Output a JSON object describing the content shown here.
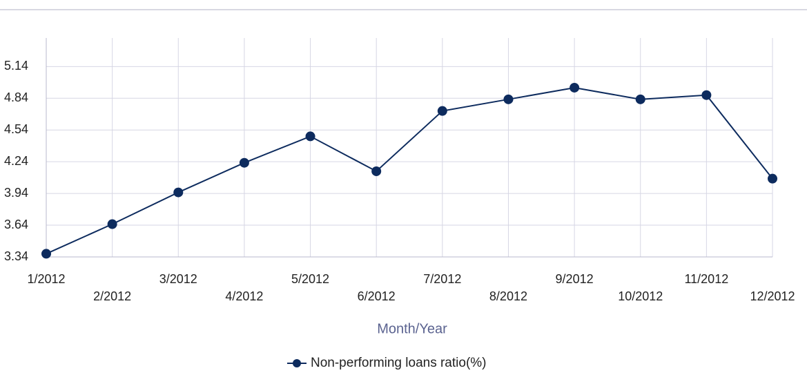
{
  "chart_data": {
    "type": "line",
    "x_label": "Month/Year",
    "categories": [
      "1/2012",
      "2/2012",
      "3/2012",
      "4/2012",
      "5/2012",
      "6/2012",
      "7/2012",
      "8/2012",
      "9/2012",
      "10/2012",
      "11/2012",
      "12/2012"
    ],
    "series": [
      {
        "name": "Non-performing loans ratio(%)",
        "color": "#0d2b5e",
        "values": [
          3.37,
          3.65,
          3.95,
          4.23,
          4.48,
          4.15,
          4.72,
          4.83,
          4.94,
          4.83,
          4.87,
          4.08
        ]
      }
    ],
    "ylim": [
      3.34,
      5.41
    ],
    "yticks": [
      3.34,
      3.64,
      3.94,
      4.24,
      4.54,
      4.84,
      5.14
    ],
    "grid": true,
    "legend": "bottom"
  }
}
